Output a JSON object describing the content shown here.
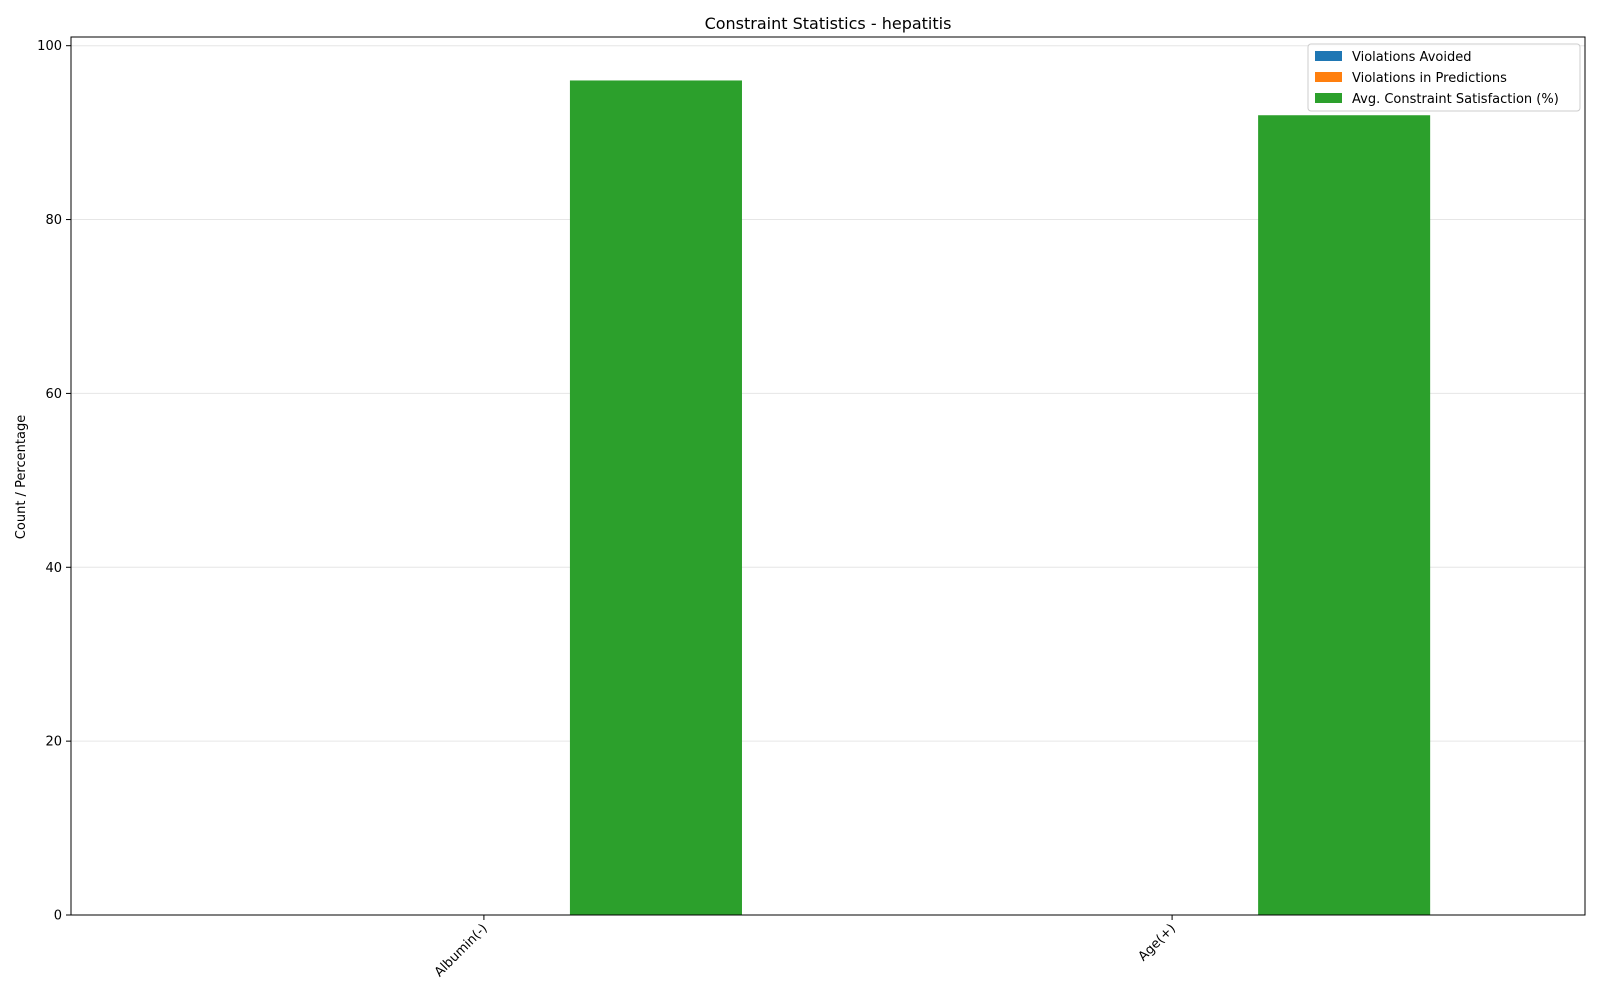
{
  "chart_data": {
    "type": "bar",
    "title": "Constraint Statistics - hepatitis",
    "xlabel": "",
    "ylabel": "Count / Percentage",
    "categories": [
      "Albumin(-)",
      "Age(+)"
    ],
    "series": [
      {
        "name": "Violations Avoided",
        "values": [
          0,
          0
        ],
        "color": "#1f77b4"
      },
      {
        "name": "Violations in Predictions",
        "values": [
          0,
          0
        ],
        "color": "#ff7f0e"
      },
      {
        "name": "Avg. Constraint Satisfaction (%)",
        "values": [
          96,
          92
        ],
        "color": "#2ca02c"
      }
    ],
    "ylim": [
      0,
      101
    ],
    "yticks": [
      0,
      20,
      40,
      60,
      80,
      100
    ],
    "grid": true,
    "legend_position": "upper right"
  }
}
